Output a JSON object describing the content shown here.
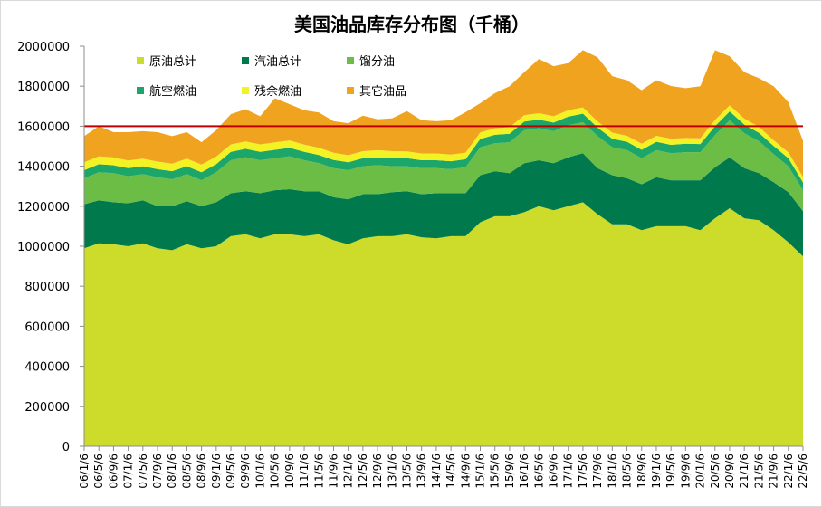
{
  "chart_data": {
    "type": "area",
    "stacked": true,
    "title": "美国油品库存分布图（千桶）",
    "ylim": [
      0,
      2000000
    ],
    "yticks": [
      "0",
      "200000",
      "400000",
      "600000",
      "800000",
      "1000000",
      "1200000",
      "1400000",
      "1600000",
      "1800000",
      "2000000"
    ],
    "reference_line": {
      "value": 1600000,
      "color": "#c00000"
    },
    "legend_position": "top-left",
    "x": [
      "06/1/6",
      "06/5/6",
      "06/9/6",
      "07/1/6",
      "07/5/6",
      "07/9/6",
      "08/1/6",
      "08/5/6",
      "08/9/6",
      "09/1/6",
      "09/5/6",
      "09/9/6",
      "10/1/6",
      "10/5/6",
      "10/9/6",
      "11/1/6",
      "11/5/6",
      "11/9/6",
      "12/1/6",
      "12/5/6",
      "12/9/6",
      "13/1/6",
      "13/5/6",
      "13/9/6",
      "14/1/6",
      "14/5/6",
      "14/9/6",
      "15/1/6",
      "15/5/6",
      "15/9/6",
      "16/1/6",
      "16/5/6",
      "16/9/6",
      "17/1/6",
      "17/5/6",
      "17/9/6",
      "18/1/6",
      "18/5/6",
      "18/9/6",
      "19/1/6",
      "19/5/6",
      "19/9/6",
      "20/1/6",
      "20/5/6",
      "20/9/6",
      "21/1/6",
      "21/5/6",
      "21/9/6",
      "22/1/6",
      "22/5/6"
    ],
    "series": [
      {
        "name": "原油总计",
        "color": "#cddc2a",
        "values": [
          990000,
          1015000,
          1010000,
          1000000,
          1015000,
          990000,
          980000,
          1010000,
          990000,
          1000000,
          1050000,
          1060000,
          1040000,
          1060000,
          1060000,
          1050000,
          1060000,
          1030000,
          1010000,
          1040000,
          1050000,
          1050000,
          1060000,
          1045000,
          1040000,
          1050000,
          1050000,
          1120000,
          1150000,
          1150000,
          1170000,
          1200000,
          1180000,
          1200000,
          1220000,
          1160000,
          1110000,
          1110000,
          1080000,
          1100000,
          1100000,
          1100000,
          1080000,
          1140000,
          1190000,
          1140000,
          1130000,
          1080000,
          1020000,
          950000
        ]
      },
      {
        "name": "汽油总计",
        "color": "#007a4d",
        "values": [
          220000,
          215000,
          210000,
          215000,
          215000,
          210000,
          220000,
          215000,
          210000,
          220000,
          215000,
          215000,
          225000,
          220000,
          225000,
          225000,
          215000,
          215000,
          225000,
          220000,
          210000,
          220000,
          215000,
          215000,
          225000,
          215000,
          215000,
          235000,
          225000,
          215000,
          245000,
          230000,
          235000,
          245000,
          245000,
          230000,
          245000,
          230000,
          230000,
          245000,
          230000,
          230000,
          250000,
          255000,
          255000,
          250000,
          235000,
          240000,
          250000,
          225000
        ]
      },
      {
        "name": "馏分油",
        "color": "#6cbd45",
        "values": [
          130000,
          140000,
          145000,
          135000,
          130000,
          145000,
          135000,
          135000,
          130000,
          150000,
          165000,
          170000,
          165000,
          160000,
          165000,
          155000,
          140000,
          145000,
          145000,
          140000,
          145000,
          130000,
          125000,
          130000,
          125000,
          120000,
          130000,
          140000,
          140000,
          155000,
          165000,
          160000,
          160000,
          160000,
          155000,
          160000,
          140000,
          140000,
          130000,
          135000,
          135000,
          140000,
          140000,
          160000,
          185000,
          175000,
          160000,
          140000,
          130000,
          105000
        ]
      },
      {
        "name": "航空燃油",
        "color": "#1da66a",
        "values": [
          40000,
          40000,
          40000,
          40000,
          40000,
          40000,
          40000,
          40000,
          40000,
          40000,
          42000,
          42000,
          42000,
          42000,
          42000,
          42000,
          41000,
          41000,
          40000,
          40000,
          40000,
          40000,
          40000,
          40000,
          40000,
          40000,
          40000,
          41000,
          42000,
          42000,
          43000,
          43000,
          43000,
          43000,
          43000,
          43000,
          42000,
          42000,
          42000,
          42000,
          42000,
          42000,
          41000,
          45000,
          44000,
          43000,
          42000,
          41000,
          40000,
          39000
        ]
      },
      {
        "name": "残余燃油",
        "color": "#f2f224",
        "values": [
          40000,
          40000,
          39000,
          39000,
          38000,
          38000,
          38000,
          38000,
          38000,
          38000,
          37000,
          37000,
          37000,
          37000,
          37000,
          36000,
          36000,
          36000,
          35000,
          35000,
          35000,
          35000,
          34000,
          34000,
          34000,
          33000,
          33000,
          33000,
          33000,
          33000,
          32000,
          32000,
          32000,
          32000,
          31000,
          31000,
          31000,
          30000,
          30000,
          30000,
          30000,
          29000,
          29000,
          31000,
          31000,
          30000,
          30000,
          29000,
          29000,
          28000
        ]
      },
      {
        "name": "其它油品",
        "color": "#f0a31e",
        "values": [
          130000,
          150000,
          126000,
          141000,
          137000,
          147000,
          137000,
          132000,
          112000,
          132000,
          151000,
          161000,
          141000,
          221000,
          181000,
          172000,
          177000,
          158000,
          160000,
          178000,
          155000,
          165000,
          201000,
          166000,
          161000,
          172000,
          202000,
          146000,
          175000,
          205000,
          215000,
          271000,
          250000,
          235000,
          286000,
          321000,
          282000,
          278000,
          268000,
          278000,
          264000,
          249000,
          260000,
          349000,
          245000,
          232000,
          243000,
          270000,
          251000,
          180000
        ]
      }
    ]
  }
}
